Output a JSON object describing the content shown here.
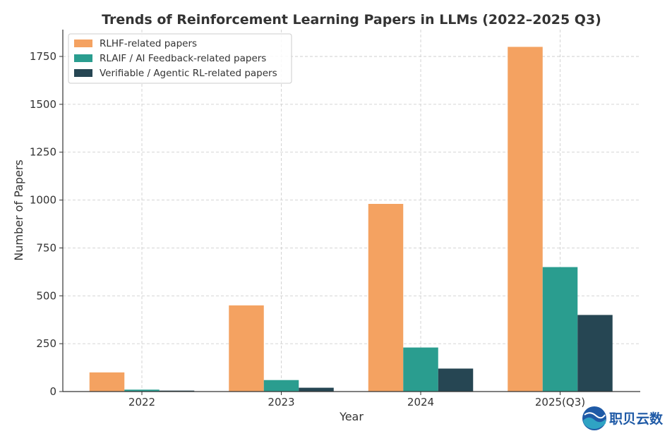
{
  "chart_data": {
    "type": "bar",
    "title": "Trends of Reinforcement Learning Papers in LLMs (2022–2025 Q3)",
    "xlabel": "Year",
    "ylabel": "Number of Papers",
    "categories": [
      "2022",
      "2023",
      "2024",
      "2025(Q3)"
    ],
    "series": [
      {
        "name": "RLHF-related papers",
        "color": "#f4a261",
        "values": [
          100,
          450,
          980,
          1800
        ]
      },
      {
        "name": "RLAIF / AI Feedback-related papers",
        "color": "#2a9d8f",
        "values": [
          10,
          60,
          230,
          650
        ]
      },
      {
        "name": "Verifiable / Agentic RL-related papers",
        "color": "#264653",
        "values": [
          5,
          20,
          120,
          400
        ]
      }
    ],
    "ylim": [
      0,
      1890
    ],
    "yticks": [
      0,
      250,
      500,
      750,
      1000,
      1250,
      1500,
      1750
    ],
    "grid": true,
    "legend_position": "top-left"
  },
  "watermark": {
    "text": "职贝云数",
    "logo": "globe-wave-logo"
  }
}
